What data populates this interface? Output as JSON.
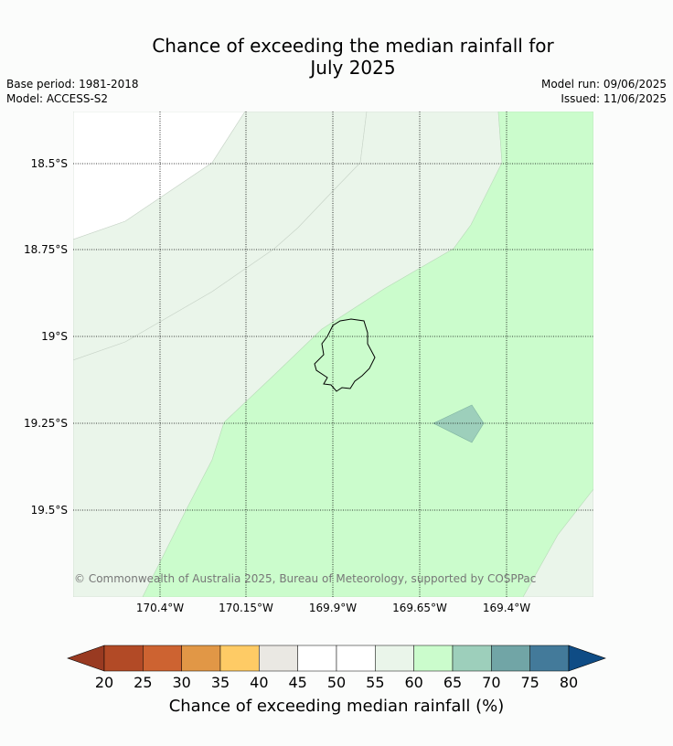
{
  "title": {
    "line1": "Chance of exceeding the median rainfall for",
    "line2": "July 2025"
  },
  "meta": {
    "base_period": "Base period: 1981-2018",
    "model": "Model: ACCESS-S2",
    "model_run": "Model run: 09/06/2025",
    "issued": "Issued: 11/06/2025"
  },
  "map": {
    "lat_labels": [
      "18.5°S",
      "18.75°S",
      "19°S",
      "19.25°S",
      "19.5°S"
    ],
    "lon_labels": [
      "170.4°W",
      "170.15°W",
      "169.9°W",
      "169.65°W",
      "169.4°W"
    ],
    "copyright": "© Commonwealth of Australia 2025, Bureau of Meteorology, supported by COSPPac"
  },
  "colorbar": {
    "label": "Chance of exceeding median rainfall (%)",
    "ticks": [
      "20",
      "25",
      "30",
      "35",
      "40",
      "45",
      "50",
      "55",
      "60",
      "65",
      "70",
      "75",
      "80"
    ],
    "colors": [
      "#b24a26",
      "#cd6331",
      "#e19746",
      "#fecb65",
      "#eae8e3",
      "#ffffff",
      "#ffffff",
      "#eaf5ea",
      "#cbfccc",
      "#9dcfbb",
      "#71a5a6",
      "#437a9a"
    ],
    "under_color": "#993a21",
    "over_color": "#0f4c85"
  }
}
